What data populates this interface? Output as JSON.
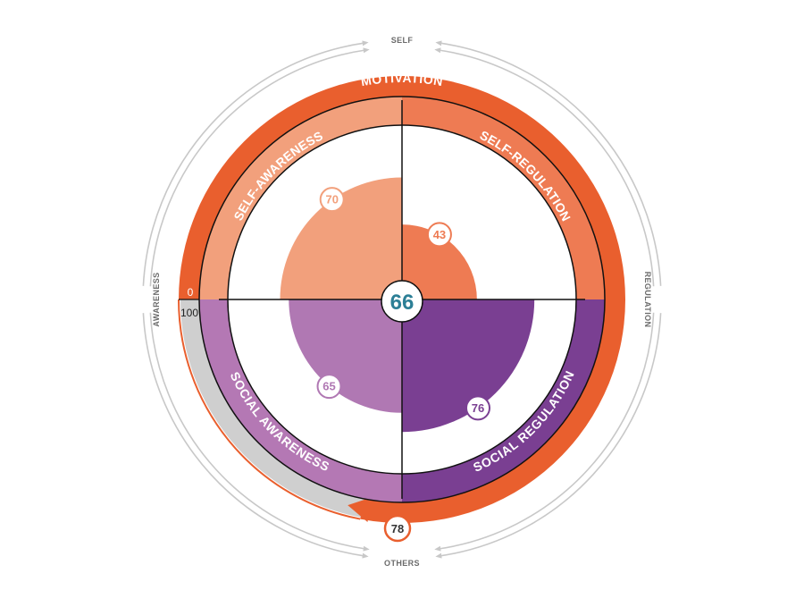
{
  "diagram": {
    "overall_score": "66",
    "motivation": {
      "label": "MOTIVATION",
      "score": "78",
      "value": 78
    },
    "scale": {
      "min_label": "0",
      "max_label": "100"
    },
    "axes": {
      "top": "SELF",
      "bottom": "OTHERS",
      "left": "AWARENESS",
      "right": "REGULATION"
    },
    "quadrants": [
      {
        "id": "self-awareness",
        "label": "SELF-AWARENESS",
        "score": "70",
        "value": 70
      },
      {
        "id": "self-regulation",
        "label": "SELF-REGULATION",
        "score": "43",
        "value": 43
      },
      {
        "id": "social-awareness",
        "label": "SOCIAL AWARENESS",
        "score": "65",
        "value": 65
      },
      {
        "id": "social-regulation",
        "label": "SOCIAL REGULATION",
        "score": "76",
        "value": 76
      }
    ]
  },
  "colors": {
    "motivation": "#e95f2e",
    "self_awareness_band": "#f2a07c",
    "self_awareness_fill": "#f2a07c",
    "self_regulation_band": "#ee7b53",
    "self_regulation_fill": "#ee7b53",
    "social_awareness_band": "#b478b4",
    "social_awareness_fill": "#b078b3",
    "social_regulation_band": "#7a3f92",
    "social_regulation_fill": "#7a3f92",
    "gap_gray": "#cfcfcf",
    "outline": "#111111",
    "axis_gray": "#c8c8c8",
    "center_text": "#2c7f96"
  }
}
